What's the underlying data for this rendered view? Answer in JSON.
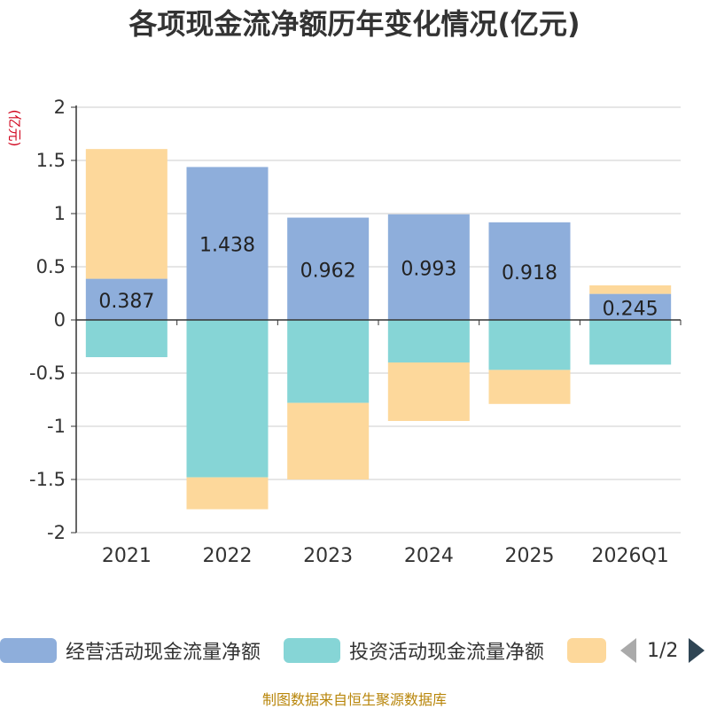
{
  "title": "各项现金流净额历年变化情况(亿元)",
  "unit_label": "(亿元)",
  "legend": {
    "items": [
      {
        "label": "经营活动现金流量净额",
        "color": "#8eaedb"
      },
      {
        "label": "投资活动现金流量净额",
        "color": "#86d5d6"
      },
      {
        "label": "",
        "color": "#fdd89b"
      }
    ],
    "page": "1/2"
  },
  "source": "制图数据来自恒生聚源数据库",
  "chart_data": {
    "type": "bar",
    "stacked": true,
    "categories": [
      "2021",
      "2022",
      "2023",
      "2024",
      "2025",
      "2026Q1"
    ],
    "series": [
      {
        "name": "经营活动现金流量净额",
        "color": "#8eaedb",
        "values": [
          0.387,
          1.438,
          0.962,
          0.993,
          0.918,
          0.245
        ]
      },
      {
        "name": "投资活动现金流量净额",
        "color": "#86d5d6",
        "values": [
          -0.35,
          -1.48,
          -0.78,
          -0.4,
          -0.47,
          -0.42
        ]
      },
      {
        "name": "",
        "color": "#fdd89b",
        "values": [
          1.22,
          -0.3,
          -0.72,
          -0.55,
          -0.32,
          0.08
        ]
      }
    ],
    "data_labels": [
      "0.387",
      "1.438",
      "0.962",
      "0.993",
      "0.918",
      "0.245"
    ],
    "ylim": [
      -2,
      2
    ],
    "yticks": [
      -2,
      -1.5,
      -1,
      -0.5,
      0,
      0.5,
      1,
      1.5,
      2
    ],
    "ytick_labels": [
      "-2",
      "-1.5",
      "-1",
      "-0.5",
      "0",
      "0.5",
      "1",
      "1.5",
      "2"
    ],
    "grid": true
  }
}
